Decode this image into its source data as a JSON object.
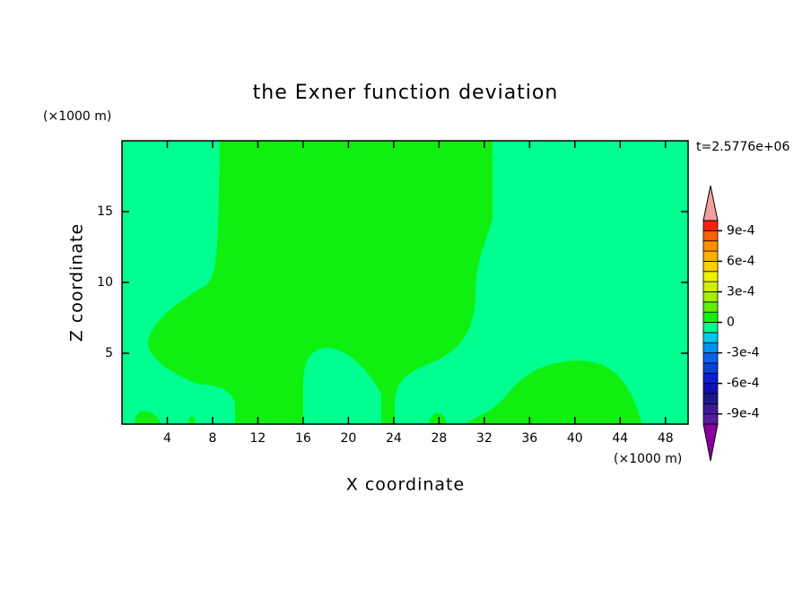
{
  "chart_data": {
    "type": "contour",
    "title": "the Exner function deviation",
    "x_label": "X coordinate",
    "y_label": "Z coordinate",
    "x_unit": "(×1000 m)",
    "y_unit": "(×1000 m)",
    "time_label": "t=2.5776e+06",
    "xlim": [
      0,
      50
    ],
    "ylim": [
      0,
      20
    ],
    "xticks": [
      4,
      8,
      12,
      16,
      20,
      24,
      28,
      32,
      36,
      40,
      44,
      48
    ],
    "yticks": [
      5,
      10,
      15
    ],
    "colorbar": {
      "levels": [
        -0.001,
        -0.0009,
        -0.0008,
        -0.0007,
        -0.0006,
        -0.0005,
        -0.0004,
        -0.0003,
        -0.0002,
        -0.0001,
        0,
        0.0001,
        0.0002,
        0.0003,
        0.0004,
        0.0005,
        0.0006,
        0.0007,
        0.0008,
        0.0009,
        0.001
      ],
      "colors": [
        "#5a1aa0",
        "#3a1a9a",
        "#1a1a8c",
        "#1010b0",
        "#0a20d0",
        "#0a40e0",
        "#1060f0",
        "#0090f0",
        "#00c8f0",
        "#00ff90",
        "#10f010",
        "#60f000",
        "#a0f000",
        "#d0f000",
        "#f0f000",
        "#ffd000",
        "#ffb000",
        "#ff9000",
        "#ff6000",
        "#ff2010"
      ],
      "over_color": "#f4a0a0",
      "under_color": "#8b00a0",
      "ticks": [
        {
          "value": 0.0009,
          "label": "9e-4"
        },
        {
          "value": 0.0006,
          "label": "6e-4"
        },
        {
          "value": 0.0003,
          "label": "3e-4"
        },
        0,
        {
          "value": -0.0003,
          "label": "-3e-4"
        },
        {
          "value": -0.0006,
          "label": "-6e-4"
        },
        {
          "value": -0.0009,
          "label": "-9e-4"
        }
      ]
    }
  }
}
